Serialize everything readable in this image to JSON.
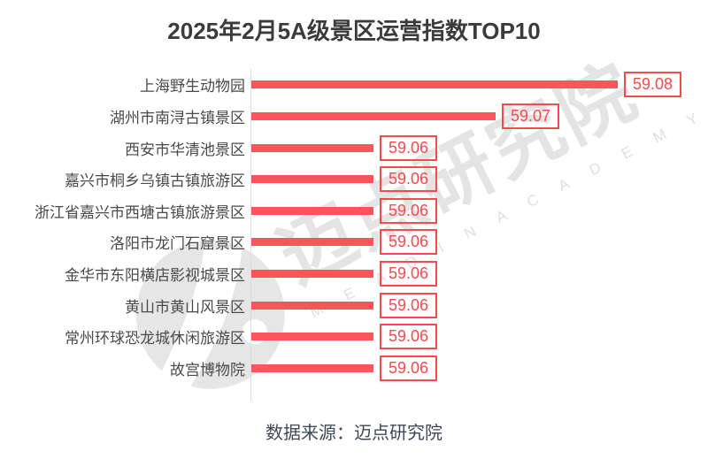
{
  "title": "2025年2月5A级景区运营指数TOP10",
  "source": "数据来源：迈点研究院",
  "watermark": {
    "cjk": "迈点研究院",
    "latin": "M E A D I N A C A D E M Y"
  },
  "colors": {
    "bar": "#f9555b",
    "value_box_border": "#f8494f",
    "value_text": "#f8494f",
    "title_text": "#3b3b3b",
    "category_text": "#4a4a4a",
    "source_text": "#3f4854",
    "axis_line": "#dcdcdc",
    "watermark": "#e4e4e4"
  },
  "chart_data": {
    "type": "bar",
    "orientation": "horizontal",
    "title": "2025年2月5A级景区运营指数TOP10",
    "categories": [
      "上海野生动物园",
      "湖州市南浔古镇景区",
      "西安市华清池景区",
      "嘉兴市桐乡乌镇古镇旅游区",
      "浙江省嘉兴市西塘古镇旅游景区",
      "洛阳市龙门石窟景区",
      "金华市东阳横店影视城景区",
      "黄山市黄山风景区",
      "常州环球恐龙城休闲旅游区",
      "故宫博物院"
    ],
    "values": [
      59.08,
      59.07,
      59.06,
      59.06,
      59.06,
      59.06,
      59.06,
      59.06,
      59.06,
      59.06
    ],
    "value_labels": [
      "59.08",
      "59.07",
      "59.06",
      "59.06",
      "59.06",
      "59.06",
      "59.06",
      "59.06",
      "59.06",
      "59.06"
    ],
    "xlim": [
      59.05,
      59.08
    ],
    "xlabel": "",
    "ylabel": "",
    "grid": false,
    "legend": false,
    "annotation": "数据来源：迈点研究院"
  }
}
